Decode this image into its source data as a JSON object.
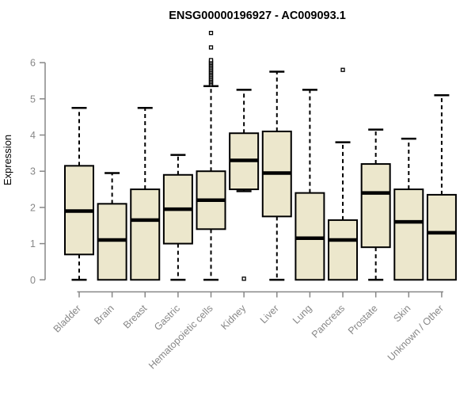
{
  "chart_data": {
    "type": "boxplot",
    "title": "ENSG00000196927 - AC009093.1",
    "ylabel": "Expression",
    "xlabel": "",
    "ylim": [
      0,
      6.9
    ],
    "yticks": [
      0,
      1,
      2,
      3,
      4,
      5,
      6
    ],
    "grid": false,
    "legend": "none",
    "categories": [
      "Bladder",
      "Brain",
      "Breast",
      "Gastric",
      "Hematopoietic cells",
      "Kidney",
      "Liver",
      "Lung",
      "Pancreas",
      "Prostate",
      "Skin",
      "Unknown / Other"
    ],
    "series": [
      {
        "label": "Bladder",
        "low": 0,
        "q1": 0.7,
        "median": 1.9,
        "q3": 3.15,
        "high": 4.75,
        "outliers": []
      },
      {
        "label": "Brain",
        "low": 0,
        "q1": 0,
        "median": 1.1,
        "q3": 2.1,
        "high": 2.95,
        "outliers": []
      },
      {
        "label": "Breast",
        "low": 0,
        "q1": 0,
        "median": 1.65,
        "q3": 2.5,
        "high": 4.75,
        "outliers": []
      },
      {
        "label": "Gastric",
        "low": 0,
        "q1": 1.0,
        "median": 1.95,
        "q3": 2.9,
        "high": 3.45,
        "outliers": []
      },
      {
        "label": "Hematopoietic cells",
        "low": 0,
        "q1": 1.4,
        "median": 2.2,
        "q3": 3.0,
        "high": 5.35,
        "outliers": [
          5.39,
          5.43,
          5.47,
          5.51,
          5.55,
          5.59,
          5.63,
          5.67,
          5.71,
          5.75,
          5.79,
          5.83,
          5.87,
          5.91,
          5.95,
          5.99,
          6.03,
          6.07,
          6.42,
          6.82
        ]
      },
      {
        "label": "Kidney",
        "low": 2.45,
        "q1": 2.5,
        "median": 3.3,
        "q3": 4.05,
        "high": 5.25,
        "outliers": [
          0.03
        ]
      },
      {
        "label": "Liver",
        "low": 0,
        "q1": 1.75,
        "median": 2.95,
        "q3": 4.1,
        "high": 5.75,
        "outliers": []
      },
      {
        "label": "Lung",
        "low": 0,
        "q1": 0,
        "median": 1.15,
        "q3": 2.4,
        "high": 5.25,
        "outliers": []
      },
      {
        "label": "Pancreas",
        "low": 0,
        "q1": 0,
        "median": 1.1,
        "q3": 1.65,
        "high": 3.8,
        "outliers": [
          5.8
        ]
      },
      {
        "label": "Prostate",
        "low": 0,
        "q1": 0.9,
        "median": 2.4,
        "q3": 3.2,
        "high": 4.15,
        "outliers": []
      },
      {
        "label": "Skin",
        "low": 0,
        "q1": 0,
        "median": 1.6,
        "q3": 2.5,
        "high": 3.9,
        "outliers": []
      },
      {
        "label": "Unknown / Other",
        "low": 0,
        "q1": 0,
        "median": 1.3,
        "q3": 2.35,
        "high": 5.1,
        "outliers": []
      }
    ]
  },
  "colors": {
    "box_fill": "#ece7cc",
    "box_stroke": "#000000",
    "median": "#000000",
    "whisker": "#000000",
    "outlier_fill": "#ffffff",
    "outlier_stroke": "#000000",
    "axis": "#878787",
    "tick_label": "#878787",
    "title": "#000000"
  }
}
